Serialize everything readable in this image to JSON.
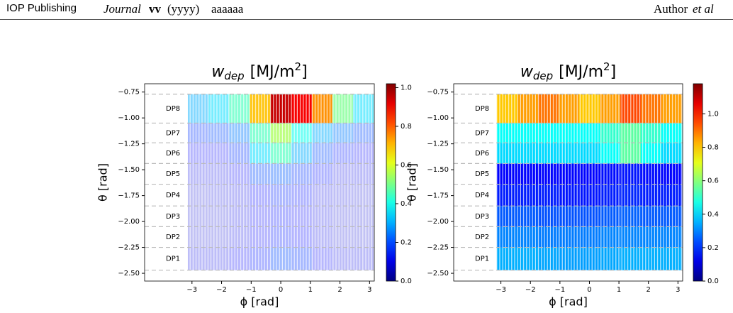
{
  "header": {
    "publisher": "IOP Publishing",
    "journal": "Journal",
    "volume": "vv",
    "year": "(yyyy)",
    "article": "aaaaaa",
    "author": "Author",
    "et_al": "et al"
  },
  "chart_data": [
    {
      "type": "heatmap",
      "title": "w",
      "title_subscript": "dep",
      "title_unit": "[MJ/m",
      "title_unit_power": "2",
      "title_unit_end": "]",
      "xlabel": "ϕ [rad]",
      "ylabel": "θ [rad]",
      "xlim": [
        -4.6,
        3.16
      ],
      "xticks": [
        {
          "value": -3,
          "label": "−3"
        },
        {
          "value": -2,
          "label": "−2"
        },
        {
          "value": -1,
          "label": "−1"
        },
        0,
        1,
        2,
        3
      ],
      "ylim": [
        -2.575,
        -0.67
      ],
      "yticks": [
        {
          "value": -0.75,
          "label": "−0.75"
        },
        {
          "value": -1,
          "label": "−1.00"
        },
        {
          "value": -1.25,
          "label": "−1.25"
        },
        {
          "value": -1.5,
          "label": "−1.50"
        },
        {
          "value": -1.75,
          "label": "−1.75"
        },
        {
          "value": -2,
          "label": "−2.00"
        },
        {
          "value": -2.25,
          "label": "−2.25"
        },
        {
          "value": -2.5,
          "label": "−2.50"
        }
      ],
      "band_edges": [
        -2.47,
        -2.25,
        -2.05,
        -1.85,
        -1.64,
        -1.44,
        -1.24,
        -1.05,
        -0.77
      ],
      "band_labels": [
        "DP1",
        "DP2",
        "DP3",
        "DP4",
        "DP5",
        "DP6",
        "DP7",
        "DP8"
      ],
      "phi_edges": [
        -3.14,
        -2.44,
        -1.74,
        -1.05,
        -0.35,
        0.35,
        1.05,
        1.74,
        2.44,
        3.14
      ],
      "values": [
        [
          0.1,
          0.1,
          0.12,
          0.15,
          0.2,
          0.18,
          0.12,
          0.1,
          0.1
        ],
        [
          0.08,
          0.08,
          0.1,
          0.12,
          0.15,
          0.13,
          0.1,
          0.08,
          0.08
        ],
        [
          0.08,
          0.08,
          0.1,
          0.12,
          0.14,
          0.12,
          0.1,
          0.08,
          0.08
        ],
        [
          0.08,
          0.09,
          0.1,
          0.13,
          0.16,
          0.14,
          0.1,
          0.09,
          0.08
        ],
        [
          0.1,
          0.1,
          0.12,
          0.2,
          0.22,
          0.18,
          0.14,
          0.1,
          0.1
        ],
        [
          0.12,
          0.12,
          0.18,
          0.35,
          0.45,
          0.3,
          0.2,
          0.15,
          0.12
        ],
        [
          0.18,
          0.2,
          0.25,
          0.45,
          0.55,
          0.4,
          0.3,
          0.25,
          0.2
        ],
        [
          0.3,
          0.35,
          0.45,
          0.7,
          0.95,
          0.9,
          0.75,
          0.5,
          0.35
        ]
      ],
      "colormap": "jet",
      "faded": true,
      "clim": [
        0,
        1.02
      ],
      "cticks": [
        {
          "value": 0,
          "label": "0.0"
        },
        {
          "value": 0.2,
          "label": "0.2"
        },
        {
          "value": 0.4,
          "label": "0.4"
        },
        {
          "value": 0.6,
          "label": "0.6"
        },
        {
          "value": 0.8,
          "label": "0.8"
        },
        {
          "value": 1,
          "label": "1.0"
        }
      ]
    },
    {
      "type": "heatmap",
      "title": "w",
      "title_subscript": "dep",
      "title_unit": "[MJ/m",
      "title_unit_power": "2",
      "title_unit_end": "]",
      "xlabel": "ϕ [rad]",
      "ylabel": "θ [rad]",
      "xlim": [
        -4.6,
        3.16
      ],
      "xticks": [
        {
          "value": -3,
          "label": "−3"
        },
        {
          "value": -2,
          "label": "−2"
        },
        {
          "value": -1,
          "label": "−1"
        },
        0,
        1,
        2,
        3
      ],
      "ylim": [
        -2.575,
        -0.67
      ],
      "yticks": [
        {
          "value": -0.75,
          "label": "−0.75"
        },
        {
          "value": -1,
          "label": "−1.00"
        },
        {
          "value": -1.25,
          "label": "−1.25"
        },
        {
          "value": -1.5,
          "label": "−1.50"
        },
        {
          "value": -1.75,
          "label": "−1.75"
        },
        {
          "value": -2,
          "label": "−2.00"
        },
        {
          "value": -2.25,
          "label": "−2.25"
        },
        {
          "value": -2.5,
          "label": "−2.50"
        }
      ],
      "band_edges": [
        -2.47,
        -2.25,
        -2.05,
        -1.85,
        -1.64,
        -1.44,
        -1.24,
        -1.05,
        -0.77
      ],
      "band_labels": [
        "DP1",
        "DP2",
        "DP3",
        "DP4",
        "DP5",
        "DP6",
        "DP7",
        "DP8"
      ],
      "phi_edges": [
        -3.14,
        -2.44,
        -1.74,
        -1.05,
        -0.35,
        0.35,
        1.05,
        1.74,
        2.44,
        3.14
      ],
      "values": [
        [
          0.35,
          0.35,
          0.34,
          0.33,
          0.33,
          0.34,
          0.35,
          0.35,
          0.35
        ],
        [
          0.3,
          0.3,
          0.29,
          0.29,
          0.29,
          0.3,
          0.3,
          0.3,
          0.3
        ],
        [
          0.25,
          0.25,
          0.24,
          0.24,
          0.24,
          0.25,
          0.26,
          0.25,
          0.25
        ],
        [
          0.18,
          0.18,
          0.18,
          0.17,
          0.17,
          0.18,
          0.19,
          0.18,
          0.18
        ],
        [
          0.15,
          0.15,
          0.15,
          0.15,
          0.15,
          0.16,
          0.17,
          0.16,
          0.15
        ],
        [
          0.4,
          0.4,
          0.4,
          0.4,
          0.4,
          0.45,
          0.55,
          0.45,
          0.4
        ],
        [
          0.45,
          0.45,
          0.45,
          0.45,
          0.45,
          0.5,
          0.55,
          0.5,
          0.45
        ],
        [
          0.8,
          0.85,
          0.9,
          0.85,
          0.8,
          0.85,
          0.95,
          0.9,
          0.85
        ]
      ],
      "colormap": "jet",
      "faded": false,
      "clim": [
        0,
        1.18
      ],
      "cticks": [
        {
          "value": 0,
          "label": "0.0"
        },
        {
          "value": 0.2,
          "label": "0.2"
        },
        {
          "value": 0.4,
          "label": "0.4"
        },
        {
          "value": 0.6,
          "label": "0.6"
        },
        {
          "value": 0.8,
          "label": "0.8"
        },
        {
          "value": 1,
          "label": "1.0"
        }
      ]
    }
  ]
}
